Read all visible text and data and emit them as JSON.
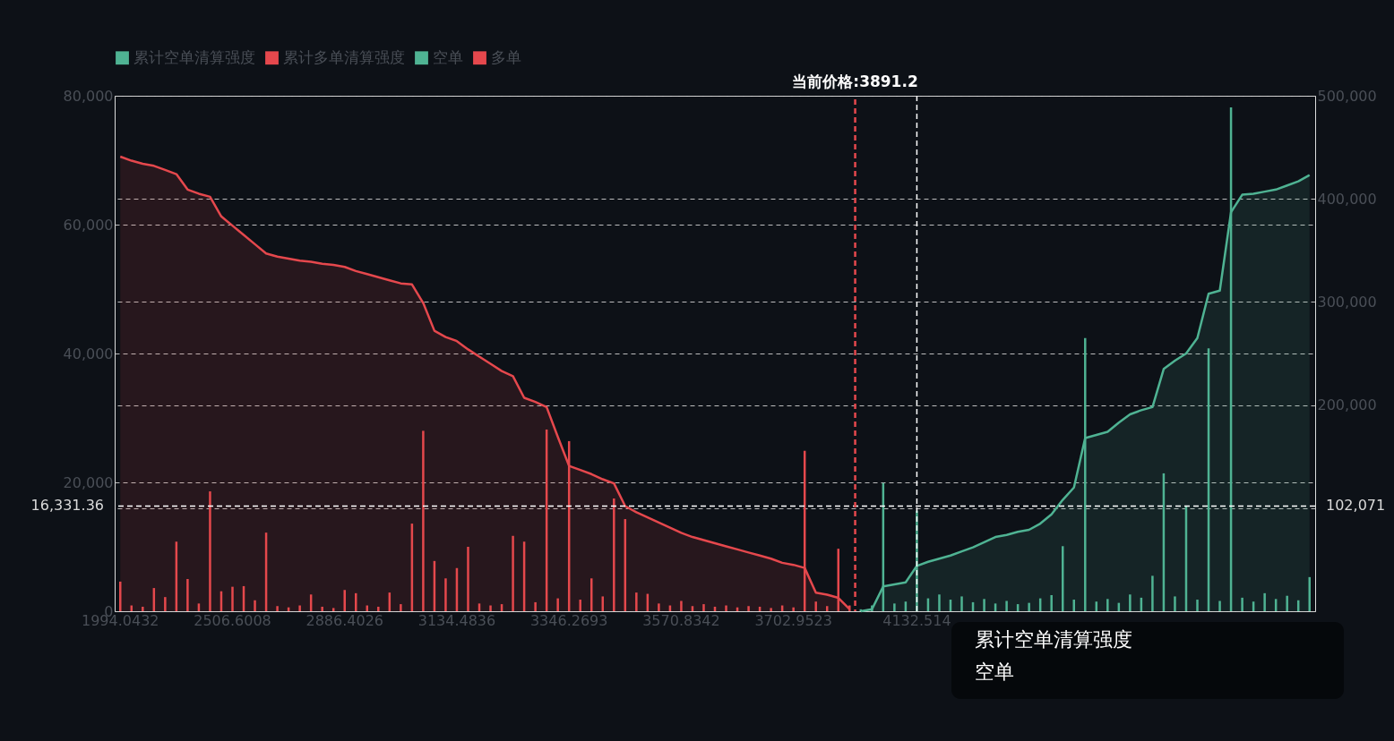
{
  "chart_data": {
    "type": "bar",
    "categories": [
      "1994.0432",
      null,
      null,
      null,
      null,
      null,
      null,
      null,
      null,
      null,
      "2506.6008",
      null,
      null,
      null,
      null,
      null,
      null,
      null,
      null,
      null,
      "2886.4026",
      null,
      null,
      null,
      null,
      null,
      null,
      null,
      null,
      null,
      "3134.4836",
      null,
      null,
      null,
      null,
      null,
      null,
      null,
      null,
      null,
      "3346.2693",
      null,
      null,
      null,
      null,
      null,
      null,
      null,
      null,
      null,
      "3570.8342",
      null,
      null,
      null,
      null,
      null,
      null,
      null,
      null,
      null,
      "3702.9523",
      null,
      null,
      null,
      null,
      null,
      null,
      null,
      null,
      null,
      null,
      "4132.514",
      null,
      null,
      null,
      null,
      null,
      null,
      null,
      null,
      null,
      null,
      null,
      null,
      null,
      null,
      null,
      null,
      null,
      null,
      null,
      null,
      null,
      null,
      null,
      null,
      null,
      null,
      null,
      null,
      null,
      null,
      null,
      null,
      null,
      null,
      null
    ],
    "series": [
      {
        "name": "累计空单清算强度",
        "type": "area",
        "axis": "y2",
        "color": "#4fb393",
        "values": [
          null,
          null,
          null,
          null,
          null,
          null,
          null,
          null,
          null,
          null,
          null,
          null,
          null,
          null,
          null,
          null,
          null,
          null,
          null,
          null,
          null,
          null,
          null,
          null,
          null,
          null,
          null,
          null,
          null,
          null,
          null,
          null,
          null,
          null,
          null,
          null,
          null,
          null,
          null,
          null,
          null,
          null,
          null,
          null,
          null,
          null,
          null,
          null,
          null,
          null,
          null,
          null,
          null,
          null,
          null,
          null,
          null,
          null,
          null,
          null,
          null,
          null,
          null,
          null,
          null,
          null,
          0,
          2000,
          24000,
          26000,
          28000,
          44000,
          48000,
          51000,
          54000,
          58000,
          62000,
          67000,
          72000,
          74000,
          77000,
          79000,
          85000,
          94000,
          108000,
          120000,
          168000,
          171000,
          174000,
          183000,
          191000,
          195000,
          198000,
          235000,
          243000,
          250000,
          265000,
          308000,
          311000,
          387000,
          404000,
          405000,
          407000,
          409000,
          413000,
          417000,
          423000
        ]
      },
      {
        "name": "累计多单清算强度",
        "type": "area",
        "axis": "y2",
        "color": "#e5484d",
        "values": [
          441000,
          437000,
          434000,
          432000,
          428000,
          424000,
          409000,
          405000,
          402000,
          383000,
          374000,
          365000,
          356000,
          347000,
          344000,
          342000,
          340000,
          339000,
          337000,
          336000,
          334000,
          330000,
          327000,
          324000,
          321000,
          318000,
          317000,
          299000,
          272000,
          266000,
          262000,
          254000,
          247000,
          240000,
          233000,
          228000,
          207000,
          203000,
          198000,
          169000,
          141000,
          137000,
          133000,
          128000,
          124000,
          102000,
          96000,
          91000,
          86000,
          81000,
          76000,
          72000,
          69000,
          66000,
          63000,
          60000,
          57000,
          54000,
          51000,
          47000,
          45000,
          42000,
          18000,
          16000,
          13000,
          2000,
          null,
          null,
          null,
          null,
          null,
          null,
          null,
          null,
          null,
          null,
          null,
          null,
          null,
          null,
          null,
          null,
          null,
          null,
          null,
          null,
          null,
          null,
          null,
          null,
          null,
          null,
          null,
          null,
          null,
          null,
          null,
          null,
          null,
          null,
          null,
          null,
          null,
          null,
          null,
          null,
          null
        ]
      },
      {
        "name": "空单",
        "color": "#4fb393",
        "values": [
          null,
          null,
          null,
          null,
          null,
          null,
          null,
          null,
          null,
          null,
          null,
          null,
          null,
          null,
          null,
          null,
          null,
          null,
          null,
          null,
          null,
          null,
          null,
          null,
          null,
          null,
          null,
          null,
          null,
          null,
          null,
          null,
          null,
          null,
          null,
          null,
          null,
          null,
          null,
          null,
          null,
          null,
          null,
          null,
          null,
          null,
          null,
          null,
          null,
          null,
          null,
          null,
          null,
          null,
          null,
          null,
          null,
          null,
          null,
          null,
          null,
          null,
          null,
          null,
          null,
          null,
          300,
          900,
          19900,
          1200,
          1500,
          15600,
          2000,
          2600,
          1800,
          2300,
          1400,
          1900,
          1200,
          1600,
          1100,
          1300,
          2000,
          2500,
          10100,
          1800,
          42400,
          1500,
          1900,
          1300,
          2600,
          2100,
          5500,
          21400,
          2300,
          16400,
          1800,
          40800,
          1600,
          78200,
          2100,
          1500,
          2800,
          1900,
          2400,
          1700,
          5300
        ]
      },
      {
        "name": "多单",
        "color": "#e5484d",
        "values": [
          4600,
          900,
          700,
          3600,
          2200,
          10800,
          5000,
          1200,
          18600,
          3100,
          3800,
          3900,
          1700,
          12200,
          800,
          600,
          900,
          2600,
          700,
          500,
          3300,
          2800,
          900,
          700,
          2900,
          1100,
          13600,
          28000,
          7800,
          5100,
          6700,
          10000,
          1200,
          900,
          1100,
          11700,
          10800,
          1400,
          28200,
          2000,
          26400,
          1800,
          5100,
          2300,
          17500,
          14300,
          2900,
          2700,
          1200,
          900,
          1600,
          800,
          1100,
          700,
          900,
          600,
          800,
          700,
          500,
          900,
          600,
          24900,
          1500,
          800,
          9700,
          900,
          null,
          null,
          null,
          null,
          null,
          null,
          null,
          null,
          null,
          null,
          null,
          null,
          null,
          null,
          null,
          null,
          null,
          null,
          null,
          null,
          null,
          null,
          null,
          null,
          null,
          null,
          null,
          null,
          null,
          null,
          null,
          null,
          null,
          null,
          null,
          null,
          null,
          null,
          null,
          null,
          null
        ]
      }
    ],
    "ylim": [
      0,
      80000
    ],
    "yticks": [
      0,
      {
        "value": 20000,
        "label": "20,000"
      },
      {
        "value": 40000,
        "label": "40,000"
      },
      {
        "value": 60000,
        "label": "60,000"
      },
      {
        "value": 80000,
        "label": "80,000"
      }
    ],
    "y2lim": [
      0,
      500000
    ],
    "y2ticks": [
      {
        "value": 0,
        "label": null
      },
      {
        "value": 100000,
        "label": null
      },
      {
        "value": 200000,
        "label": "200,000"
      },
      {
        "value": 300000,
        "label": "300,000"
      },
      {
        "value": 400000,
        "label": "400,000"
      },
      {
        "value": 500000,
        "label": "500,000"
      }
    ],
    "grid": true,
    "legend": "top",
    "ref_lines": [
      {
        "axis": "y",
        "value": 16331.36,
        "label": "16,331.36",
        "color": "#ffffff",
        "line_style": "dashed"
      },
      {
        "axis": "x",
        "value": "4132.514",
        "color": "#ffffff",
        "line_style": "dashed"
      }
    ],
    "annotations": [
      "102,071",
      "当前价格:3891.2",
      "累计空单清算强度",
      "空单"
    ]
  }
}
